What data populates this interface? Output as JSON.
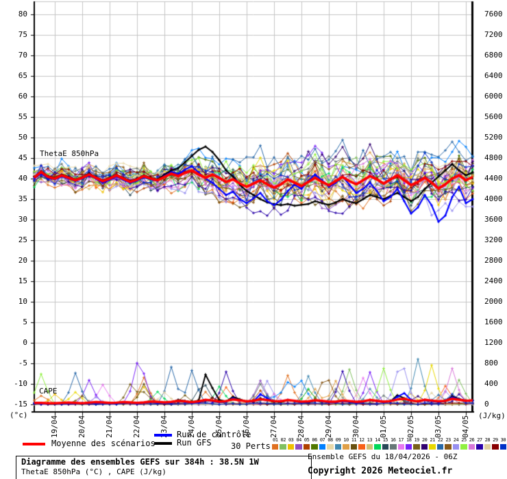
{
  "chart": {
    "labels": {
      "thetae": "ThetaE 850hPa",
      "cape": "CAPE"
    },
    "colors": {
      "grid": "#c4c4c4",
      "axis": "#000000",
      "mean": "#ff0000",
      "control": "#0000ff",
      "gfs": "#000000",
      "background": "#ffffff"
    }
  },
  "chart_data": {
    "type": "line",
    "title": "Diagramme des ensembles GEFS sur 384h : 38.5N 1W",
    "subtitle": "ThetaE 850hPa (°C) , CAPE (J/kg)",
    "run": "Ensemble GEFS du 18/04/2026 - 06Z",
    "x": {
      "start": "18/04 06Z",
      "step_hours": 6,
      "total_hours": 384,
      "date_ticks": [
        "19/04",
        "20/04",
        "21/04",
        "22/04",
        "23/04",
        "24/04",
        "25/04",
        "26/04",
        "27/04",
        "28/04",
        "29/04",
        "30/04",
        "01/05",
        "02/05",
        "03/05",
        "04/05"
      ]
    },
    "y_left": {
      "label": "(°c)",
      "min": -15,
      "max": 80,
      "tick_step": 5,
      "ticks": [
        "80",
        "75",
        "70",
        "65",
        "60",
        "55",
        "50",
        "45",
        "40",
        "35",
        "30",
        "25",
        "20",
        "15",
        "10",
        "5",
        "0",
        "-5",
        "-10",
        "-15"
      ]
    },
    "y_right": {
      "label": "(J/kg)",
      "min": 0,
      "max": 7600,
      "tick_step": 400,
      "ticks": [
        "7600",
        "7200",
        "6800",
        "6400",
        "6000",
        "5600",
        "5200",
        "4800",
        "4400",
        "4000",
        "3600",
        "3200",
        "2800",
        "2400",
        "2000",
        "1600",
        "1200",
        "800",
        "400",
        "0"
      ]
    },
    "thetae_series": [
      {
        "name": "Moyenne des scénarios",
        "color": "#ff0000",
        "values": [
          40.2,
          41.6,
          40.4,
          40.0,
          40.8,
          40.2,
          39.6,
          40.2,
          41.0,
          40.2,
          39.4,
          40.0,
          40.8,
          40.0,
          39.2,
          39.8,
          40.6,
          40.0,
          39.6,
          40.4,
          41.2,
          40.6,
          41.4,
          42.0,
          41.0,
          40.2,
          41.0,
          40.2,
          39.2,
          39.8,
          38.8,
          38.0,
          38.8,
          39.6,
          38.6,
          37.8,
          38.6,
          39.8,
          39.0,
          38.2,
          39.2,
          40.2,
          39.2,
          38.4,
          39.4,
          40.4,
          39.4,
          38.6,
          39.6,
          40.6,
          39.8,
          38.8,
          39.8,
          40.8,
          39.6,
          38.4,
          39.2,
          40.2,
          39.0,
          37.6,
          38.6,
          40.0,
          40.8,
          39.6,
          40.4
        ]
      },
      {
        "name": "Run de contrôle",
        "color": "#0000ff",
        "values": [
          40.0,
          41.2,
          40.1,
          39.8,
          40.5,
          40.0,
          39.4,
          40.0,
          40.7,
          40.0,
          39.0,
          39.7,
          40.5,
          39.7,
          38.9,
          39.5,
          40.3,
          39.8,
          39.4,
          40.6,
          41.6,
          41.0,
          42.2,
          43.0,
          41.5,
          40.0,
          39.0,
          37.5,
          36.0,
          36.8,
          35.0,
          34.0,
          35.2,
          36.5,
          34.5,
          33.5,
          34.8,
          37.0,
          38.5,
          37.5,
          39.5,
          41.0,
          39.5,
          38.0,
          39.0,
          40.5,
          38.5,
          36.5,
          37.5,
          39.0,
          37.0,
          34.5,
          35.5,
          37.5,
          34.5,
          31.5,
          33.0,
          36.0,
          33.5,
          29.5,
          31.0,
          35.5,
          38.0,
          34.0,
          35.0
        ]
      },
      {
        "name": "Run GFS",
        "color": "#000000",
        "values": [
          40.4,
          41.8,
          40.6,
          40.2,
          41.0,
          40.4,
          39.8,
          40.4,
          41.2,
          40.4,
          39.6,
          40.2,
          41.0,
          40.2,
          39.4,
          40.0,
          40.8,
          40.2,
          39.8,
          41.0,
          42.0,
          42.5,
          44.0,
          45.5,
          47.0,
          47.8,
          46.5,
          44.5,
          42.0,
          40.5,
          38.5,
          37.0,
          36.0,
          35.0,
          34.2,
          33.8,
          33.5,
          33.8,
          33.4,
          33.6,
          33.8,
          34.5,
          34.0,
          33.6,
          34.2,
          35.0,
          34.4,
          34.0,
          35.0,
          36.0,
          35.5,
          35.0,
          35.8,
          36.5,
          35.5,
          34.5,
          35.5,
          37.5,
          39.0,
          40.5,
          42.0,
          43.5,
          42.0,
          40.8,
          41.5
        ]
      }
    ],
    "cape_series": [
      {
        "name": "Moyenne des scénarios",
        "color": "#ff0000",
        "values": [
          30,
          30,
          25,
          25,
          30,
          35,
          30,
          25,
          35,
          45,
          40,
          30,
          35,
          45,
          40,
          30,
          40,
          55,
          50,
          40,
          50,
          70,
          60,
          45,
          60,
          90,
          75,
          55,
          65,
          95,
          80,
          60,
          70,
          100,
          85,
          65,
          60,
          85,
          70,
          55,
          60,
          80,
          70,
          55,
          55,
          75,
          65,
          50,
          60,
          85,
          70,
          55,
          65,
          95,
          110,
          75,
          60,
          90,
          75,
          60,
          70,
          110,
          90,
          70,
          80
        ]
      },
      {
        "name": "Run de contrôle",
        "color": "#0000ff",
        "values": [
          10,
          15,
          10,
          10,
          15,
          20,
          15,
          10,
          20,
          30,
          25,
          15,
          20,
          35,
          25,
          15,
          25,
          45,
          35,
          25,
          35,
          60,
          45,
          30,
          40,
          80,
          60,
          40,
          50,
          120,
          80,
          50,
          60,
          200,
          120,
          60,
          50,
          90,
          60,
          40,
          45,
          70,
          55,
          40,
          40,
          60,
          50,
          35,
          45,
          80,
          60,
          45,
          55,
          150,
          220,
          90,
          50,
          80,
          60,
          45,
          60,
          140,
          100,
          60,
          70
        ]
      },
      {
        "name": "Run GFS",
        "color": "#000000",
        "values": [
          10,
          15,
          10,
          10,
          15,
          20,
          15,
          10,
          20,
          30,
          25,
          15,
          20,
          35,
          25,
          15,
          25,
          50,
          40,
          25,
          40,
          90,
          70,
          45,
          80,
          580,
          320,
          90,
          60,
          150,
          100,
          60,
          55,
          120,
          80,
          50,
          45,
          80,
          60,
          40,
          40,
          70,
          55,
          40,
          40,
          65,
          50,
          35,
          45,
          90,
          70,
          50,
          60,
          180,
          120,
          70,
          50,
          90,
          70,
          50,
          65,
          160,
          110,
          70,
          80
        ]
      }
    ],
    "perturbations": {
      "count": 30,
      "labels": [
        "01",
        "02",
        "03",
        "04",
        "05",
        "06",
        "07",
        "08",
        "09",
        "10",
        "11",
        "12",
        "13",
        "14",
        "15",
        "16",
        "17",
        "18",
        "19",
        "20",
        "21",
        "22",
        "23",
        "24",
        "25",
        "26",
        "27",
        "28",
        "29",
        "30"
      ],
      "colors": [
        "#e07020",
        "#80c060",
        "#f0c000",
        "#9050c0",
        "#b04000",
        "#507800",
        "#0080ff",
        "#e8d8a8",
        "#4088b0",
        "#e0a048",
        "#685010",
        "#f86018",
        "#d0c078",
        "#00d858",
        "#284858",
        "#687878",
        "#e878f0",
        "#7820f8",
        "#786018",
        "#300070",
        "#e8d800",
        "#2868a8",
        "#885818",
        "#9890f0",
        "#90f040",
        "#d878d8",
        "#2800a8",
        "#e0d0a0",
        "#880000",
        "#0030c8"
      ],
      "seed": 7,
      "spread_envelope": [
        2.0,
        2.2,
        2.2,
        2.3,
        2.4,
        2.4,
        2.5,
        2.5,
        2.6,
        2.6,
        2.7,
        2.7,
        2.8,
        2.8,
        2.9,
        3.0,
        3.0,
        3.1,
        3.2,
        3.3,
        3.6,
        3.9,
        4.2,
        4.5,
        4.8,
        5.0,
        5.2,
        5.4,
        5.5,
        5.6,
        5.7,
        5.8,
        5.9,
        6.0,
        6.0,
        6.1,
        6.2,
        6.2,
        6.3,
        6.3,
        6.4,
        6.4,
        6.5,
        6.5,
        6.5,
        6.6,
        6.6,
        6.6,
        6.7,
        6.7,
        6.7,
        6.8,
        6.8,
        6.8,
        6.9,
        6.9,
        6.9,
        7.0,
        7.0,
        7.0,
        7.0,
        7.0,
        7.0,
        7.0,
        7.0
      ],
      "cape_spikes": {
        "prob_early": 0.018,
        "prob_mid": 0.05,
        "prob_late": 0.045,
        "max": 950
      }
    },
    "ylim_left": [
      -15,
      80
    ],
    "ylim_right": [
      0,
      7600
    ],
    "grid": true
  },
  "legend": {
    "mean_label": "Moyenne des scénarios",
    "control_label": "Run de contrôle",
    "gfs_label": "Run GFS",
    "perts_label": "30 Perts."
  },
  "footer": {
    "box_title": "Diagramme des ensembles GEFS sur 384h : 38.5N 1W",
    "box_subtitle": "ThetaE 850hPa (°C) , CAPE (J/kg)",
    "run_info": "Ensemble GEFS du 18/04/2026 - 06Z",
    "copyright": "Copyright 2026 Meteociel.fr"
  }
}
